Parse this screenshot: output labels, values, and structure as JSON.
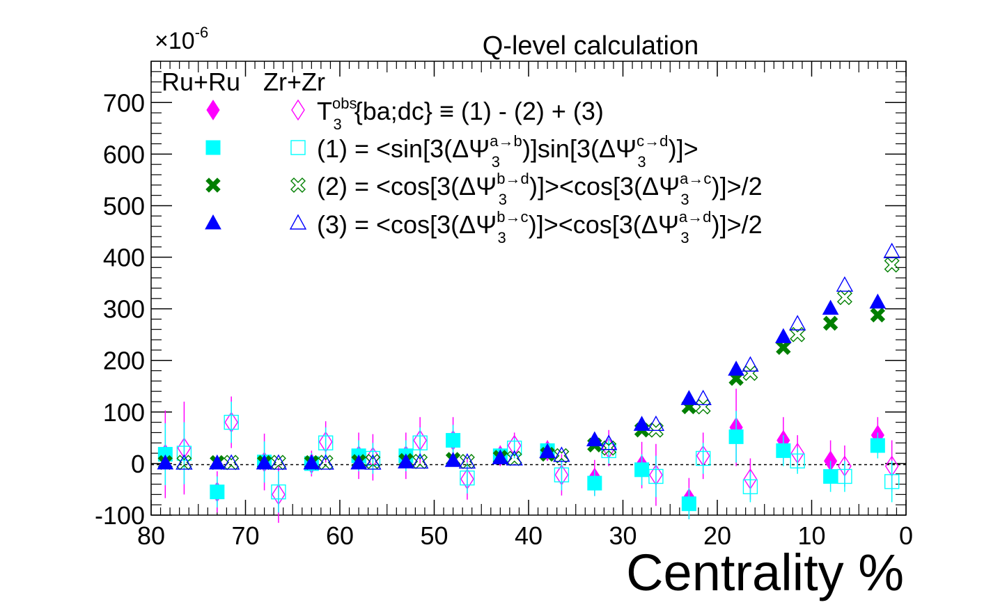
{
  "chart_data": {
    "type": "scatter",
    "title": "Q-level calculation",
    "xlabel": "Centrality %",
    "ylabel": "",
    "y_multiplier": "×10",
    "y_multiplier_exp": "-6",
    "xlim": [
      80,
      0
    ],
    "ylim": [
      -100,
      780
    ],
    "x_ticks": [
      "80",
      "70",
      "60",
      "50",
      "40",
      "30",
      "20",
      "10",
      "0"
    ],
    "x_tick_values": [
      80,
      70,
      60,
      50,
      40,
      30,
      20,
      10,
      0
    ],
    "y_ticks": [
      "-100",
      "0",
      "100",
      "200",
      "300",
      "400",
      "500",
      "600",
      "700"
    ],
    "y_tick_values": [
      -100,
      0,
      100,
      200,
      300,
      400,
      500,
      600,
      700
    ],
    "reference_line": 0,
    "legend": {
      "column_headers": [
        "Ru+Ru",
        "Zr+Zr"
      ],
      "entries": [
        {
          "main": "T",
          "sup": "obs",
          "sub": "3",
          "after": "{ba;dc} ≡ (1) - (2) + (3)"
        },
        {
          "pre": "(1) = <sin[3(ΔΨ",
          "sup": "a→b",
          "sub": "3",
          "mid": ")]sin[3(ΔΨ",
          "sup2": "c→d",
          "sub2": "3",
          "post": ")]>"
        },
        {
          "pre": "(2) = <cos[3(ΔΨ",
          "sup": "b→d",
          "sub": "3",
          "mid": ")]><cos[3(ΔΨ",
          "sup2": "a→c",
          "sub2": "3",
          "post": ")]>/2"
        },
        {
          "pre": "(3) = <cos[3(ΔΨ",
          "sup": "b→c",
          "sub": "3",
          "mid": ")]><cos[3(ΔΨ",
          "sup2": "a→d",
          "sub2": "3",
          "post": ")]>/2"
        }
      ]
    },
    "series": [
      {
        "name": "T3obs Ru+Ru",
        "marker": "diamond",
        "filled": true,
        "color": "#ff00ff",
        "x": [
          78.5,
          73,
          68,
          63,
          58,
          53,
          48,
          43,
          38,
          33,
          28,
          23,
          18,
          13,
          8,
          3
        ],
        "y": [
          18,
          -55,
          3,
          0,
          15,
          15,
          45,
          15,
          25,
          -28,
          -3,
          -68,
          70,
          45,
          5,
          55
        ],
        "err": [
          85,
          40,
          55,
          25,
          45,
          45,
          45,
          20,
          20,
          35,
          45,
          40,
          75,
          45,
          40,
          35
        ]
      },
      {
        "name": "T3obs Zr+Zr",
        "marker": "diamond",
        "filled": false,
        "color": "#ff00ff",
        "x": [
          76.5,
          71.5,
          66.5,
          61.5,
          56.5,
          51.5,
          46.5,
          41.5,
          36.5,
          31.5,
          26.5,
          21.5,
          16.5,
          11.5,
          6.5,
          1.5
        ],
        "y": [
          30,
          80,
          -60,
          42,
          12,
          45,
          -30,
          35,
          -22,
          30,
          -22,
          15,
          -30,
          20,
          -5,
          -5
        ],
        "err": [
          90,
          50,
          55,
          40,
          45,
          45,
          40,
          25,
          40,
          35,
          60,
          45,
          40,
          35,
          40,
          50
        ]
      },
      {
        "name": "(1) Ru+Ru",
        "marker": "square",
        "filled": true,
        "color": "#00ffff",
        "x": [
          78.5,
          73,
          68,
          63,
          58,
          53,
          48,
          43,
          38,
          33,
          28,
          23,
          18,
          13,
          8,
          3
        ],
        "y": [
          18,
          -55,
          3,
          0,
          15,
          15,
          45,
          15,
          25,
          -38,
          -12,
          -78,
          52,
          25,
          -25,
          35
        ],
        "err": [
          60,
          30,
          40,
          20,
          30,
          30,
          30,
          15,
          15,
          25,
          30,
          30,
          50,
          30,
          30,
          25
        ]
      },
      {
        "name": "(1) Zr+Zr",
        "marker": "square",
        "filled": false,
        "color": "#00ffff",
        "x": [
          76.5,
          71.5,
          66.5,
          61.5,
          56.5,
          51.5,
          46.5,
          41.5,
          36.5,
          31.5,
          26.5,
          21.5,
          16.5,
          11.5,
          6.5,
          1.5
        ],
        "y": [
          20,
          80,
          -55,
          40,
          10,
          40,
          -28,
          30,
          -22,
          25,
          -25,
          10,
          -45,
          5,
          -25,
          -35
        ],
        "err": [
          60,
          40,
          40,
          30,
          30,
          30,
          30,
          20,
          30,
          25,
          40,
          30,
          30,
          25,
          30,
          40
        ]
      },
      {
        "name": "(2) Ru+Ru",
        "marker": "cross",
        "filled": true,
        "color": "#007f00",
        "x": [
          78.5,
          73,
          68,
          63,
          58,
          53,
          48,
          43,
          38,
          33,
          28,
          23,
          18,
          13,
          8,
          3
        ],
        "y": [
          2,
          2,
          2,
          2,
          4,
          6,
          8,
          12,
          18,
          36,
          65,
          110,
          165,
          225,
          272,
          288
        ],
        "err": [
          0,
          0,
          0,
          0,
          0,
          0,
          0,
          0,
          0,
          0,
          0,
          0,
          0,
          0,
          0,
          0
        ]
      },
      {
        "name": "(2) Zr+Zr",
        "marker": "cross",
        "filled": false,
        "color": "#007f00",
        "x": [
          76.5,
          71.5,
          66.5,
          61.5,
          56.5,
          51.5,
          46.5,
          41.5,
          36.5,
          31.5,
          26.5,
          21.5,
          16.5,
          11.5,
          6.5,
          1.5
        ],
        "y": [
          2,
          2,
          2,
          2,
          4,
          4,
          4,
          10,
          15,
          30,
          65,
          110,
          175,
          250,
          322,
          385
        ],
        "err": [
          0,
          0,
          0,
          0,
          0,
          0,
          0,
          0,
          0,
          0,
          0,
          0,
          0,
          0,
          0,
          0
        ]
      },
      {
        "name": "(3) Ru+Ru",
        "marker": "triangle",
        "filled": true,
        "color": "#0000ff",
        "x": [
          78.5,
          73,
          68,
          63,
          58,
          53,
          48,
          43,
          38,
          33,
          28,
          23,
          18,
          13,
          8,
          3
        ],
        "y": [
          0,
          0,
          0,
          0,
          0,
          2,
          5,
          10,
          22,
          45,
          75,
          125,
          182,
          245,
          300,
          312
        ],
        "err": [
          0,
          0,
          0,
          0,
          0,
          0,
          0,
          0,
          0,
          0,
          0,
          0,
          0,
          0,
          0,
          0
        ]
      },
      {
        "name": "(3) Zr+Zr",
        "marker": "triangle",
        "filled": false,
        "color": "#0000ff",
        "x": [
          76.5,
          71.5,
          66.5,
          61.5,
          56.5,
          51.5,
          46.5,
          41.5,
          36.5,
          31.5,
          26.5,
          21.5,
          16.5,
          11.5,
          6.5,
          1.5
        ],
        "y": [
          0,
          0,
          0,
          0,
          0,
          2,
          2,
          8,
          15,
          38,
          75,
          125,
          190,
          270,
          345,
          410
        ],
        "err": [
          0,
          0,
          0,
          0,
          0,
          0,
          0,
          0,
          0,
          0,
          0,
          0,
          0,
          0,
          0,
          0
        ]
      }
    ]
  }
}
